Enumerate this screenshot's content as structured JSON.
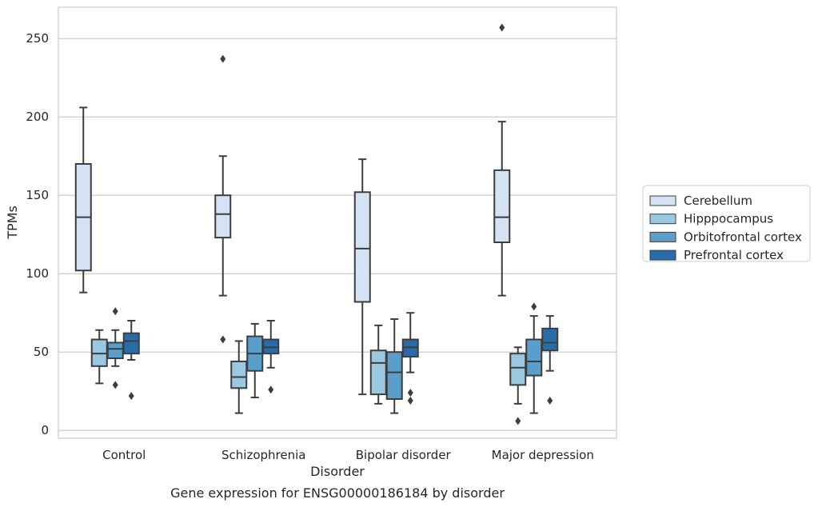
{
  "chart_data": {
    "type": "boxplot",
    "caption": "Gene expression for ENSG00000186184 by disorder",
    "xlabel": "Disorder",
    "ylabel": "TPMs",
    "ylim": [
      -5,
      270
    ],
    "yticks": [
      0,
      50,
      100,
      150,
      200,
      250
    ],
    "categories": [
      "Control",
      "Schizophrenia",
      "Bipolar disorder",
      "Major depression"
    ],
    "legend_position": "right",
    "grid": true,
    "series": [
      {
        "name": "Cerebellum",
        "color": "#d3e3f3",
        "boxes": [
          {
            "whisker_low": 88,
            "q1": 102,
            "median": 136,
            "q3": 170,
            "whisker_high": 206,
            "outliers": []
          },
          {
            "whisker_low": 86,
            "q1": 123,
            "median": 138,
            "q3": 150,
            "whisker_high": 175,
            "outliers": [
              58,
              237
            ]
          },
          {
            "whisker_low": 23,
            "q1": 82,
            "median": 116,
            "q3": 152,
            "whisker_high": 173,
            "outliers": []
          },
          {
            "whisker_low": 86,
            "q1": 120,
            "median": 136,
            "q3": 166,
            "whisker_high": 197,
            "outliers": [
              257
            ]
          }
        ]
      },
      {
        "name": "Hipppocampus",
        "color": "#9ac8e0",
        "boxes": [
          {
            "whisker_low": 30,
            "q1": 41,
            "median": 49,
            "q3": 58,
            "whisker_high": 64,
            "outliers": []
          },
          {
            "whisker_low": 11,
            "q1": 27,
            "median": 34,
            "q3": 44,
            "whisker_high": 57,
            "outliers": []
          },
          {
            "whisker_low": 17,
            "q1": 23,
            "median": 43,
            "q3": 51,
            "whisker_high": 67,
            "outliers": []
          },
          {
            "whisker_low": 17,
            "q1": 29,
            "median": 40,
            "q3": 49,
            "whisker_high": 53,
            "outliers": [
              6
            ]
          }
        ]
      },
      {
        "name": "Orbitofrontal cortex",
        "color": "#5a9fcb",
        "boxes": [
          {
            "whisker_low": 41,
            "q1": 46,
            "median": 52,
            "q3": 56,
            "whisker_high": 64,
            "outliers": [
              29,
              76
            ]
          },
          {
            "whisker_low": 21,
            "q1": 38,
            "median": 49,
            "q3": 60,
            "whisker_high": 68,
            "outliers": []
          },
          {
            "whisker_low": 11,
            "q1": 20,
            "median": 37,
            "q3": 50,
            "whisker_high": 71,
            "outliers": []
          },
          {
            "whisker_low": 11,
            "q1": 35,
            "median": 44,
            "q3": 58,
            "whisker_high": 73,
            "outliers": [
              79
            ]
          }
        ]
      },
      {
        "name": "Prefrontal cortex",
        "color": "#2a6ba9",
        "boxes": [
          {
            "whisker_low": 45,
            "q1": 49,
            "median": 57,
            "q3": 62,
            "whisker_high": 70,
            "outliers": [
              22
            ]
          },
          {
            "whisker_low": 40,
            "q1": 49,
            "median": 53,
            "q3": 58,
            "whisker_high": 70,
            "outliers": [
              26
            ]
          },
          {
            "whisker_low": 37,
            "q1": 47,
            "median": 53,
            "q3": 58,
            "whisker_high": 75,
            "outliers": [
              19,
              24
            ]
          },
          {
            "whisker_low": 38,
            "q1": 51,
            "median": 56,
            "q3": 65,
            "whisker_high": 73,
            "outliers": [
              19
            ]
          }
        ]
      }
    ]
  }
}
